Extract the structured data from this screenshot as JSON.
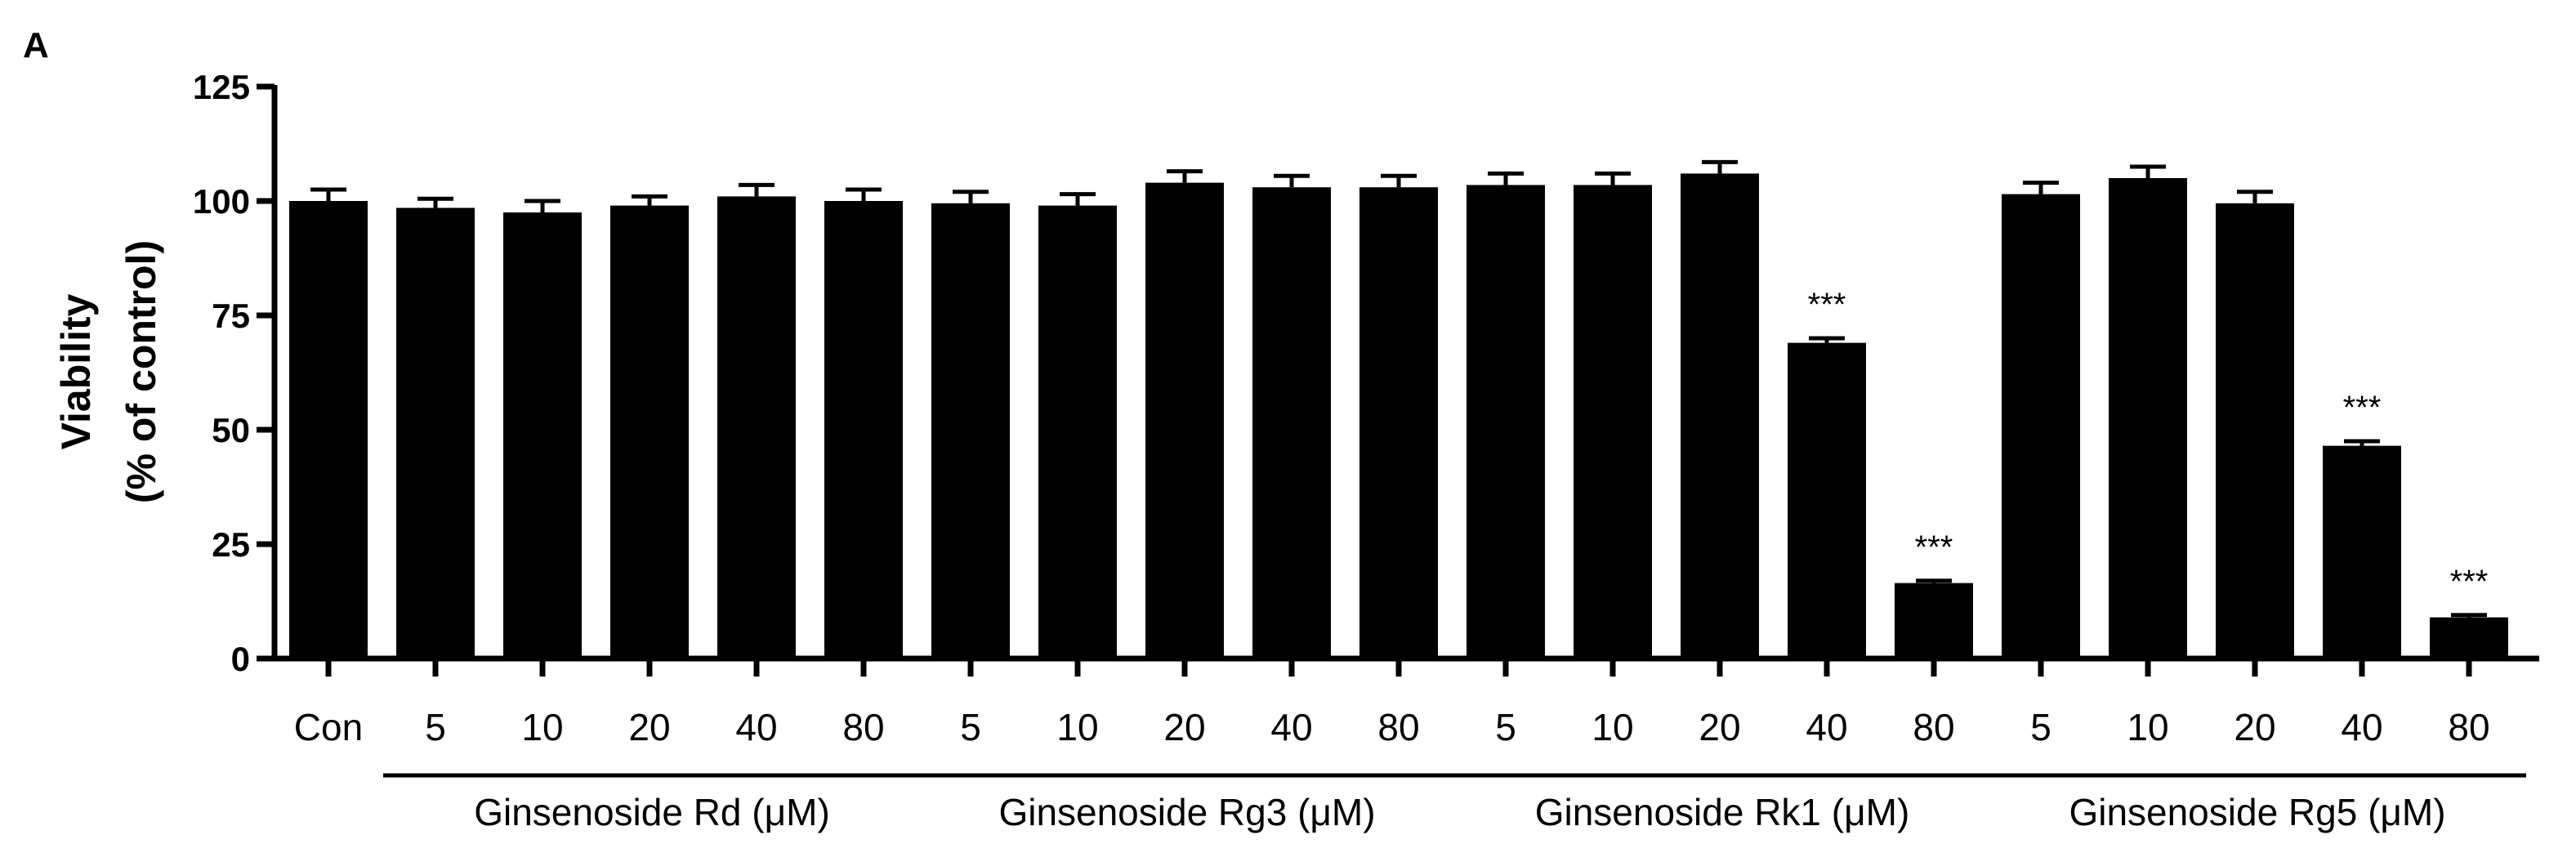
{
  "panel_label": "A",
  "chart_data": {
    "type": "bar",
    "title": "",
    "xlabel": "",
    "ylabel": [
      "Viability",
      "(% of control)"
    ],
    "ylim": [
      0,
      125
    ],
    "yticks": [
      0,
      25,
      50,
      75,
      100,
      125
    ],
    "grid": false,
    "legend": "none",
    "bar_color": "#000000",
    "categories": [
      "Con",
      "5",
      "10",
      "20",
      "40",
      "80",
      "5",
      "10",
      "20",
      "40",
      "80",
      "5",
      "10",
      "20",
      "40",
      "80",
      "5",
      "10",
      "20",
      "40",
      "80"
    ],
    "values": [
      100,
      98.5,
      97.5,
      99,
      101,
      100,
      99.5,
      99,
      104,
      103,
      103,
      103.5,
      103.5,
      106,
      69,
      16.5,
      101.5,
      105,
      99.5,
      46.5,
      9
    ],
    "errors": [
      2.5,
      2,
      2.5,
      2,
      2.5,
      2.5,
      2.5,
      2.5,
      2.5,
      2.5,
      2.5,
      2.5,
      2.5,
      2.5,
      1,
      0.5,
      2.5,
      2.5,
      2.5,
      1,
      0.5
    ],
    "significance": [
      "",
      "",
      "",
      "",
      "",
      "",
      "",
      "",
      "",
      "",
      "",
      "",
      "",
      "",
      "***",
      "***",
      "",
      "",
      "",
      "***",
      "***"
    ],
    "groups": [
      {
        "label": "Ginsenoside Rd (μM)",
        "start": 1,
        "end": 5
      },
      {
        "label": "Ginsenoside Rg3 (μM)",
        "start": 6,
        "end": 10
      },
      {
        "label": "Ginsenoside Rk1 (μM)",
        "start": 11,
        "end": 15
      },
      {
        "label": "Ginsenoside Rg5 (μM)",
        "start": 16,
        "end": 20
      }
    ]
  }
}
